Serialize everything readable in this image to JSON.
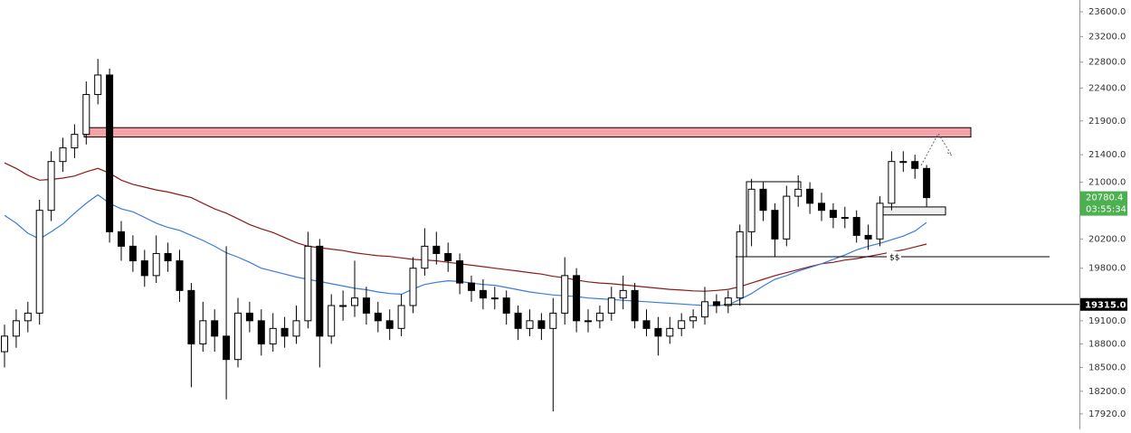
{
  "chart_data": {
    "type": "candlestick",
    "log": true,
    "ylim": [
      17731,
      23791
    ],
    "yticks": [
      {
        "value": 23600,
        "label": "23600.0"
      },
      {
        "value": 23200,
        "label": "23200.0"
      },
      {
        "value": 22800,
        "label": "22800.0"
      },
      {
        "value": 22400,
        "label": "22400.0"
      },
      {
        "value": 21900,
        "label": "21900.0"
      },
      {
        "value": 21400,
        "label": "21400.0"
      },
      {
        "value": 21000,
        "label": "21000.0"
      },
      {
        "value": 20200,
        "label": "20200.0"
      },
      {
        "value": 19800,
        "label": "19800.0"
      },
      {
        "value": 19100,
        "label": "19100.0"
      },
      {
        "value": 18800,
        "label": "18800.0"
      },
      {
        "value": 18500,
        "label": "18500.0"
      },
      {
        "value": 18200,
        "label": "18200.0"
      },
      {
        "value": 17920,
        "label": "17920.0"
      }
    ],
    "up_color": "#ffffff",
    "down_color": "#000000",
    "open": [
      18700,
      18900,
      19100,
      19200,
      20600,
      21300,
      21500,
      21700,
      22300,
      22600,
      20300,
      20100,
      19900,
      19700,
      20000,
      19900,
      19500,
      18800,
      19100,
      18900,
      18600,
      19200,
      19100,
      18800,
      19000,
      18900,
      19100,
      20100,
      18900,
      19300,
      19300,
      19400,
      19200,
      19100,
      19000,
      19300,
      19800,
      20100,
      20000,
      19900,
      19600,
      19500,
      19400,
      19400,
      19200,
      19000,
      19100,
      19000,
      19200,
      19700,
      19100,
      19100,
      19200,
      19400,
      19500,
      19100,
      19000,
      18900,
      19000,
      19100,
      19150,
      19350,
      19300,
      19400,
      20300,
      20900,
      20600,
      20200,
      20800,
      20900,
      20700,
      20600,
      20500,
      20500,
      20250,
      20200,
      20700,
      21300,
      21300,
      21200
    ],
    "high": [
      19050,
      19250,
      19350,
      20750,
      21450,
      21650,
      21850,
      22500,
      22850,
      22700,
      20450,
      20250,
      20050,
      20250,
      20150,
      20050,
      19600,
      19350,
      19250,
      20100,
      19400,
      19350,
      19250,
      19200,
      19150,
      19300,
      20300,
      20200,
      19450,
      19500,
      19900,
      19550,
      19350,
      19250,
      19450,
      19950,
      20350,
      20300,
      20150,
      20000,
      19700,
      19650,
      19550,
      19500,
      19300,
      19250,
      19200,
      19400,
      19950,
      19800,
      19250,
      19300,
      19550,
      19700,
      19600,
      19250,
      19150,
      19150,
      19200,
      19250,
      19550,
      19450,
      19500,
      20400,
      21050,
      21000,
      20700,
      20950,
      21100,
      21000,
      20850,
      20700,
      20650,
      20600,
      20400,
      20800,
      21450,
      21450,
      21400,
      21250
    ],
    "low": [
      18500,
      18750,
      18950,
      19050,
      20450,
      21150,
      21350,
      21550,
      22150,
      20150,
      19900,
      19750,
      19550,
      19600,
      19750,
      19350,
      18250,
      18700,
      18700,
      18100,
      18500,
      18950,
      18650,
      18700,
      18750,
      18800,
      19000,
      18500,
      18800,
      19100,
      19150,
      19050,
      18950,
      18850,
      18900,
      19200,
      19700,
      19850,
      19750,
      19450,
      19350,
      19250,
      19250,
      19050,
      18850,
      18900,
      18850,
      17950,
      19050,
      18950,
      18950,
      19000,
      19100,
      19250,
      19000,
      18900,
      18650,
      18800,
      18900,
      19000,
      19050,
      19200,
      19200,
      19300,
      20100,
      20450,
      19950,
      20100,
      20650,
      20550,
      20450,
      20350,
      20350,
      20150,
      20050,
      20100,
      20600,
      21150,
      21050,
      20650
    ],
    "close": [
      18900,
      19100,
      19200,
      20600,
      21300,
      21500,
      21700,
      22300,
      22600,
      20300,
      20100,
      19900,
      19700,
      20000,
      19900,
      19500,
      18800,
      19100,
      18900,
      18600,
      19200,
      19100,
      18800,
      19000,
      18900,
      19100,
      20100,
      18900,
      19300,
      19300,
      19400,
      19200,
      19100,
      19000,
      19300,
      19800,
      20100,
      20000,
      19900,
      19600,
      19500,
      19400,
      19400,
      19200,
      19000,
      19100,
      19000,
      19200,
      19700,
      19100,
      19100,
      19200,
      19400,
      19500,
      19100,
      19000,
      18900,
      19000,
      19100,
      19150,
      19350,
      19300,
      19400,
      20300,
      20900,
      20600,
      20200,
      20800,
      20900,
      20700,
      20600,
      20500,
      20500,
      20250,
      20200,
      20700,
      21300,
      21300,
      21200,
      20780.4
    ],
    "lines": [
      {
        "color": "#8b1a1a",
        "values": [
          21280,
          21200,
          21100,
          21030,
          21040,
          21060,
          21090,
          21150,
          21200,
          21130,
          21030,
          20970,
          20930,
          20890,
          20860,
          20820,
          20780,
          20700,
          20620,
          20560,
          20480,
          20400,
          20340,
          20290,
          20220,
          20150,
          20100,
          20080,
          20060,
          20040,
          20010,
          19990,
          19970,
          19960,
          19940,
          19920,
          19910,
          19900,
          19880,
          19860,
          19840,
          19820,
          19800,
          19780,
          19760,
          19740,
          19720,
          19690,
          19670,
          19640,
          19615,
          19600,
          19590,
          19575,
          19560,
          19545,
          19530,
          19515,
          19505,
          19495,
          19490,
          19500,
          19515,
          19550,
          19600,
          19650,
          19700,
          19740,
          19780,
          19820,
          19860,
          19880,
          19910,
          19930,
          19960,
          19990,
          20020,
          20050,
          20090,
          20130
        ]
      },
      {
        "color": "#3a7bdc",
        "values": [
          20530,
          20420,
          20280,
          20200,
          20300,
          20410,
          20560,
          20700,
          20820,
          20700,
          20620,
          20580,
          20500,
          20420,
          20360,
          20320,
          20250,
          20180,
          20100,
          20010,
          19950,
          19880,
          19800,
          19760,
          19720,
          19680,
          19650,
          19620,
          19590,
          19560,
          19530,
          19510,
          19480,
          19460,
          19450,
          19520,
          19580,
          19610,
          19630,
          19620,
          19600,
          19580,
          19570,
          19540,
          19510,
          19480,
          19460,
          19440,
          19430,
          19420,
          19400,
          19390,
          19380,
          19370,
          19360,
          19350,
          19340,
          19330,
          19320,
          19310,
          19300,
          19300,
          19310,
          19380,
          19460,
          19560,
          19650,
          19700,
          19760,
          19810,
          19860,
          19920,
          19980,
          20050,
          20100,
          20140,
          20190,
          20240,
          20310,
          20430
        ]
      }
    ],
    "zones": [
      {
        "ylim": [
          21660,
          21800
        ],
        "color": "#f4a4a8"
      },
      {
        "ylim": [
          20535,
          20648
        ],
        "color": "#eeeeee"
      }
    ],
    "levels": [
      {
        "value": 19956,
        "text": "$$"
      },
      {
        "value": {
          "value": 19315,
          "label": "19315.0"
        }
      }
    ],
    "last_price": {
      "value": 20780.4,
      "countdown": "03:55:34",
      "color": "#4caf50"
    }
  }
}
